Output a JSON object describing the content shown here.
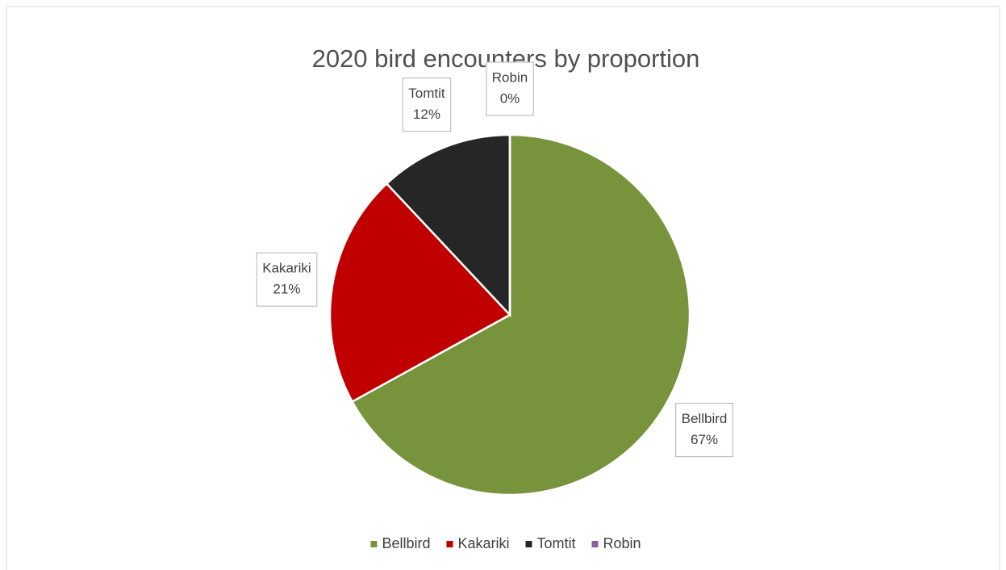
{
  "chart_data": {
    "type": "pie",
    "title": "2020 bird encounters by proportion",
    "categories": [
      "Bellbird",
      "Kakariki",
      "Tomtit",
      "Robin"
    ],
    "values": [
      67,
      21,
      12,
      0
    ],
    "value_labels": [
      "67%",
      "21%",
      "12%",
      "0%"
    ],
    "colors": [
      "#77933c",
      "#c00000",
      "#262626",
      "#8064a2"
    ],
    "legend": "bottom"
  }
}
